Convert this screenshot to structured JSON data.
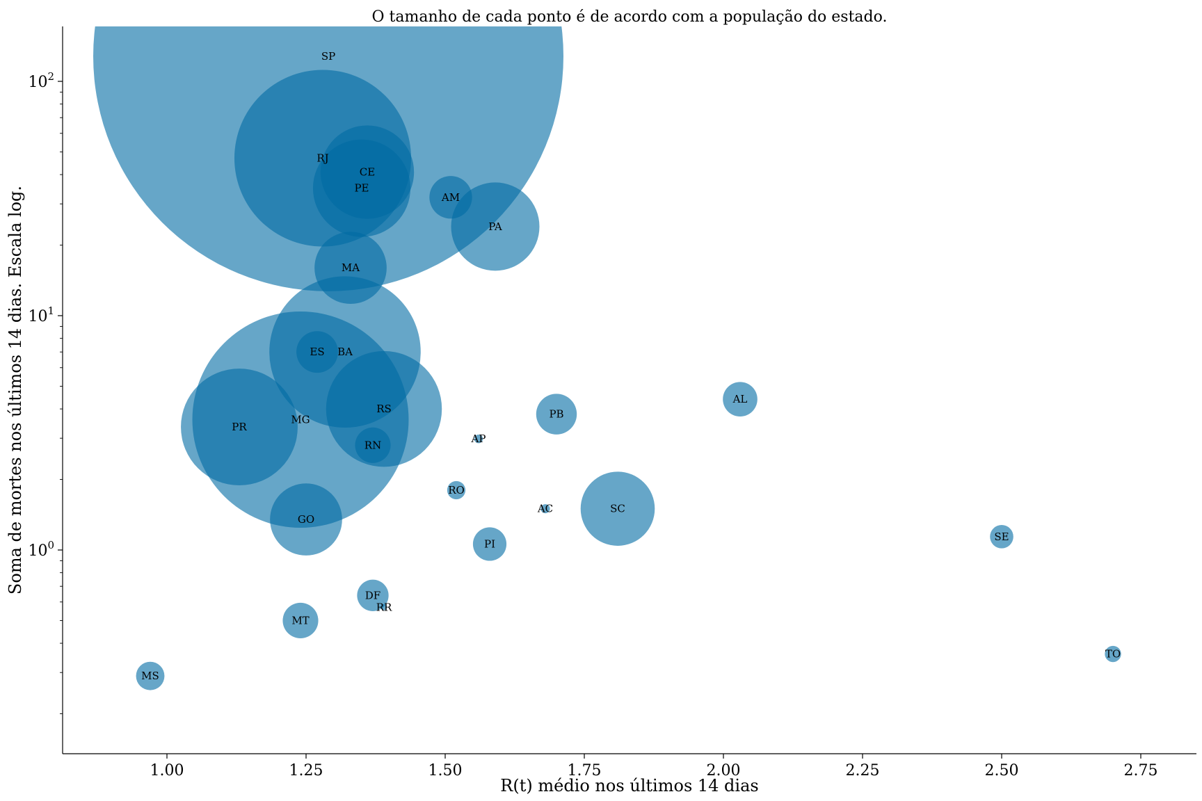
{
  "chart_data": {
    "type": "scatter",
    "title": "O tamanho de cada ponto é de acordo com a população do estado.",
    "xlabel": "R(t) médio nos últimos 14 dias",
    "ylabel": "Soma de mortes nos últimos 14 dias. Escala log.",
    "y_scale": "log",
    "xlim": [
      0.82,
      2.85
    ],
    "ylim": [
      0.17,
      175
    ],
    "grid": false,
    "marker_color": "#006BA4",
    "marker_alpha": 0.6,
    "x_ticks": [
      {
        "value": 1.0,
        "label": "1.00"
      },
      {
        "value": 1.25,
        "label": "1.25"
      },
      {
        "value": 1.5,
        "label": "1.50"
      },
      {
        "value": 1.75,
        "label": "1.75"
      },
      {
        "value": 2.0,
        "label": "2.00"
      },
      {
        "value": 2.25,
        "label": "2.25"
      },
      {
        "value": 2.5,
        "label": "2.50"
      },
      {
        "value": 2.75,
        "label": "2.75"
      }
    ],
    "y_ticks": [
      {
        "value": 1,
        "base": "10",
        "exp": "0"
      },
      {
        "value": 10,
        "base": "10",
        "exp": "1"
      },
      {
        "value": 100,
        "base": "10",
        "exp": "2"
      }
    ],
    "points": [
      {
        "label": "SP",
        "x": 1.29,
        "y": 128,
        "size": 46.3
      },
      {
        "label": "MG",
        "x": 1.24,
        "y": 3.6,
        "size": 21.3
      },
      {
        "label": "RJ",
        "x": 1.28,
        "y": 47,
        "size": 17.4
      },
      {
        "label": "BA",
        "x": 1.32,
        "y": 7.0,
        "size": 14.9
      },
      {
        "label": "PR",
        "x": 1.13,
        "y": 3.35,
        "size": 11.5
      },
      {
        "label": "RS",
        "x": 1.39,
        "y": 4.0,
        "size": 11.4
      },
      {
        "label": "PE",
        "x": 1.35,
        "y": 35,
        "size": 9.6
      },
      {
        "label": "CE",
        "x": 1.36,
        "y": 41,
        "size": 9.2
      },
      {
        "label": "PA",
        "x": 1.59,
        "y": 24,
        "size": 8.7
      },
      {
        "label": "SC",
        "x": 1.81,
        "y": 1.5,
        "size": 7.3
      },
      {
        "label": "MA",
        "x": 1.33,
        "y": 16,
        "size": 7.1
      },
      {
        "label": "GO",
        "x": 1.25,
        "y": 1.35,
        "size": 7.1
      },
      {
        "label": "AM",
        "x": 1.51,
        "y": 32,
        "size": 4.2
      },
      {
        "label": "ES",
        "x": 1.27,
        "y": 7.0,
        "size": 4.1
      },
      {
        "label": "PB",
        "x": 1.7,
        "y": 3.8,
        "size": 4.0
      },
      {
        "label": "RN",
        "x": 1.37,
        "y": 2.8,
        "size": 3.5
      },
      {
        "label": "MT",
        "x": 1.24,
        "y": 0.5,
        "size": 3.5
      },
      {
        "label": "AL",
        "x": 2.03,
        "y": 4.4,
        "size": 3.4
      },
      {
        "label": "PI",
        "x": 1.58,
        "y": 1.06,
        "size": 3.3
      },
      {
        "label": "DF",
        "x": 1.37,
        "y": 0.64,
        "size": 3.1
      },
      {
        "label": "MS",
        "x": 0.97,
        "y": 0.29,
        "size": 2.8
      },
      {
        "label": "SE",
        "x": 2.5,
        "y": 1.14,
        "size": 2.3
      },
      {
        "label": "RO",
        "x": 1.52,
        "y": 1.8,
        "size": 1.8
      },
      {
        "label": "TO",
        "x": 2.7,
        "y": 0.36,
        "size": 1.6
      },
      {
        "label": "AC",
        "x": 1.68,
        "y": 1.5,
        "size": 0.9
      },
      {
        "label": "AP",
        "x": 1.56,
        "y": 2.98,
        "size": 0.85
      },
      {
        "label": "RR",
        "x": 1.39,
        "y": 0.57,
        "size": 0.6
      }
    ]
  }
}
